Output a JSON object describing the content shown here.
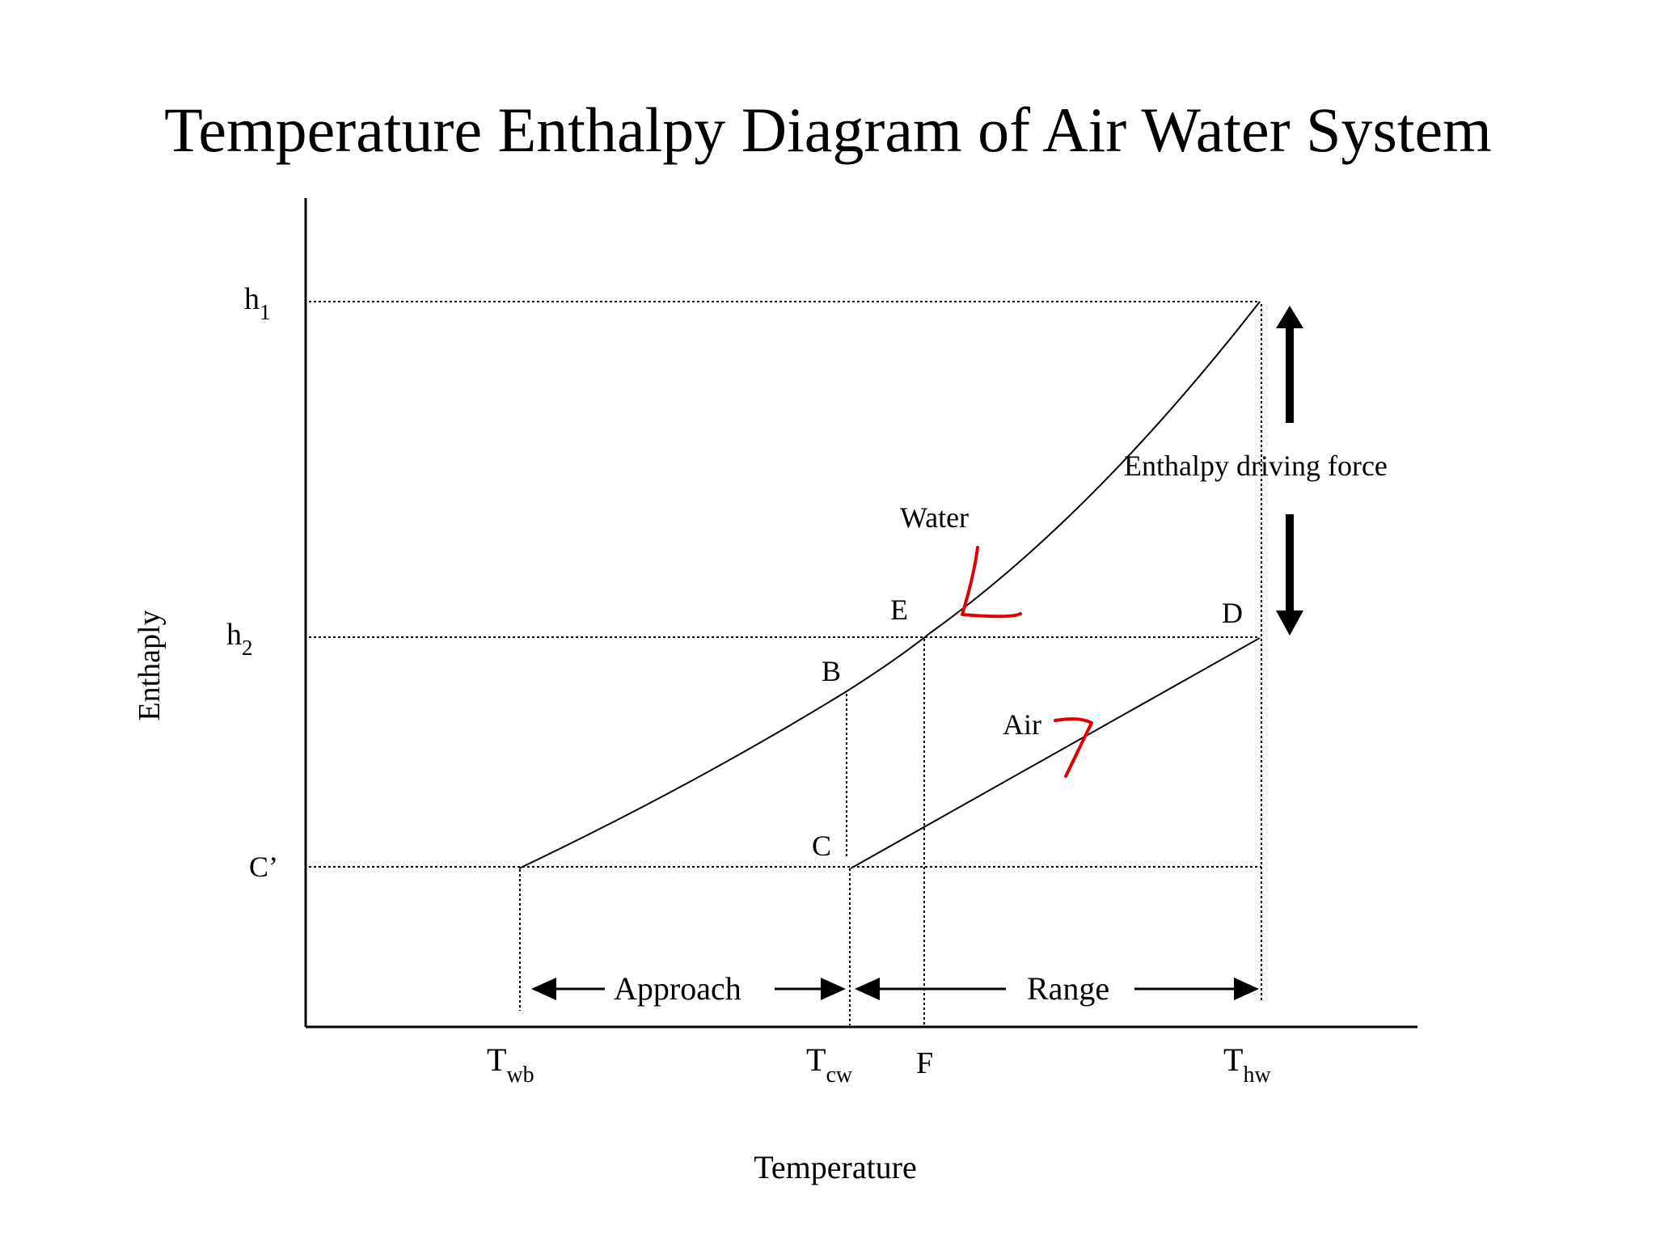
{
  "title": "Temperature Enthalpy Diagram of Air Water System",
  "axes": {
    "ylabel": "Enthaply",
    "xlabel": "Temperature"
  },
  "y_levels": {
    "h1": {
      "main": "h",
      "sub": "1"
    },
    "h2": {
      "main": "h",
      "sub": "2"
    },
    "c_prime": "C’"
  },
  "x_ticks": {
    "twb": {
      "main": "T",
      "sub": "wb"
    },
    "tcw": {
      "main": "T",
      "sub": "cw"
    },
    "f": "F",
    "thw": {
      "main": "T",
      "sub": "hw"
    }
  },
  "points": {
    "b": "B",
    "c": "C",
    "d": "D",
    "e": "E"
  },
  "curves": {
    "water": "Water",
    "air": "Air"
  },
  "annotations": {
    "driving_force": "Enthalpy driving force",
    "approach": "Approach",
    "range": "Range"
  },
  "colors": {
    "ink": "#000000",
    "handwriting": "#e00000"
  }
}
